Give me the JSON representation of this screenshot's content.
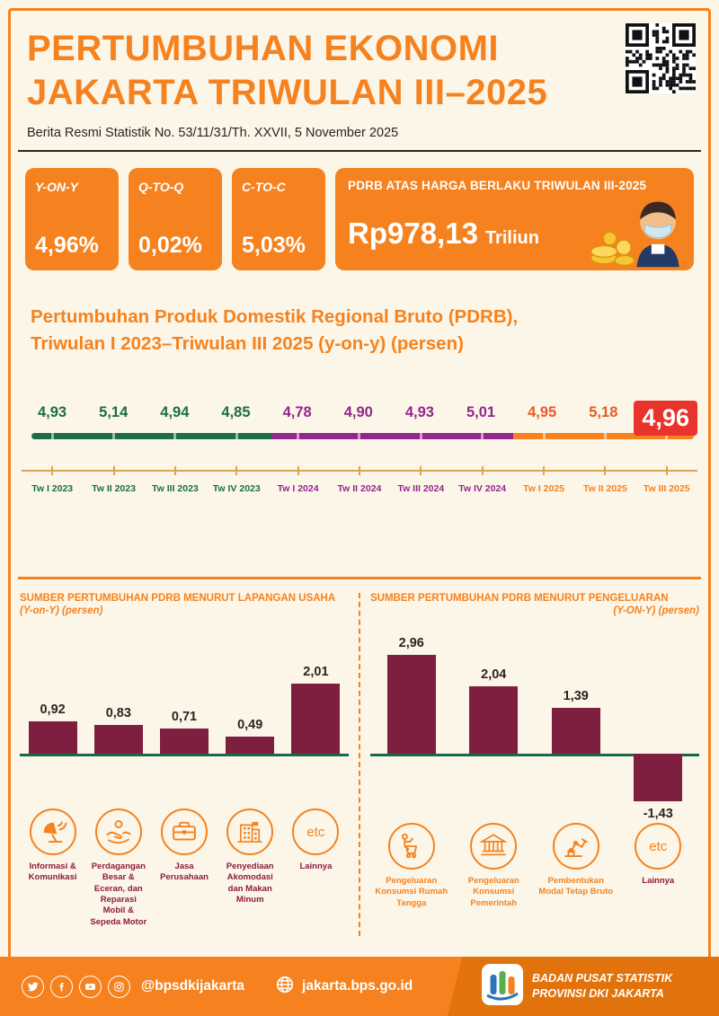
{
  "colors": {
    "orange": "#F5821F",
    "maroon": "#7E1F3F",
    "green_2023": "#1B6E45",
    "purple_2024": "#93268F",
    "red_highlight": "#E8342C",
    "background": "#FBF6E8"
  },
  "header": {
    "title1": "PERTUMBUHAN EKONOMI",
    "title2": "JAKARTA TRIWULAN III–2025",
    "subtitle": "Berita Resmi Statistik No. 53/11/31/Th. XXVII, 5 November 2025"
  },
  "stats": [
    {
      "label": "Y-ON-Y",
      "value": "4,96%"
    },
    {
      "label": "Q-TO-Q",
      "value": "0,02%"
    },
    {
      "label": "C-TO-C",
      "value": "5,03%"
    }
  ],
  "banner": {
    "title": "PDRB ATAS HARGA BERLAKU TRIWULAN III-2025",
    "value": "Rp978,13",
    "unit": "Triliun"
  },
  "growth_section": {
    "title1": "Pertumbuhan Produk Domestik Regional Bruto (PDRB),",
    "title2": "Triwulan I 2023–Triwulan III 2025 (y-on-y) (persen)"
  },
  "chart_data": [
    {
      "type": "line",
      "title": "Pertumbuhan PDRB Triwulan I 2023–Triwulan III 2025 (y-on-y) (persen)",
      "x": [
        "Tw I 2023",
        "Tw II 2023",
        "Tw III 2023",
        "Tw IV 2023",
        "Tw I 2024",
        "Tw II 2024",
        "Tw III 2024",
        "Tw IV 2024",
        "Tw I 2025",
        "Tw II 2025",
        "Tw III 2025"
      ],
      "values": [
        4.93,
        5.14,
        4.94,
        4.85,
        4.78,
        4.9,
        4.93,
        5.01,
        4.95,
        5.18,
        4.96
      ],
      "labels": [
        "4,93",
        "5,14",
        "4,94",
        "4,85",
        "4,78",
        "4,90",
        "4,93",
        "5,01",
        "4,95",
        "5,18",
        "4,96"
      ],
      "groups": [
        "2023",
        "2023",
        "2023",
        "2023",
        "2024",
        "2024",
        "2024",
        "2024",
        "2025",
        "2025",
        "2025"
      ],
      "highlight_index": 10,
      "legend_position": "none",
      "grid": false
    },
    {
      "type": "bar",
      "title": "SUMBER PERTUMBUHAN PDRB MENURUT LAPANGAN USAHA",
      "subtitle": "(Y-on-Y) (persen)",
      "categories": [
        "Informasi & Komunikasi",
        "Perdagangan Besar & Eceran, dan Reparasi Mobil & Sepeda Motor",
        "Jasa Perusahaan",
        "Penyediaan Akomodasi dan Makan Minum",
        "Lainnya"
      ],
      "values": [
        0.92,
        0.83,
        0.71,
        0.49,
        2.01
      ],
      "labels": [
        "0,92",
        "0,83",
        "0,71",
        "0,49",
        "2,01"
      ],
      "icons": [
        "satellite-icon",
        "trade-hands-icon",
        "briefcase-icon",
        "hotel-icon",
        "etc-icon"
      ],
      "ylim": [
        0,
        2.2
      ],
      "grid": false
    },
    {
      "type": "bar",
      "title": "SUMBER PERTUMBUHAN PDRB MENURUT PENGELUARAN",
      "subtitle": "(Y-ON-Y) (persen)",
      "categories": [
        "Pengeluaran Konsumsi Rumah Tangga",
        "Pengeluaran Konsumsi Pemerintah",
        "Pembentukan Modal Tetap Bruto",
        "Lainnya"
      ],
      "values": [
        2.96,
        2.04,
        1.39,
        -1.43
      ],
      "labels": [
        "2,96",
        "2,04",
        "1,39",
        "-1,43"
      ],
      "icons": [
        "household-cart-icon",
        "government-bank-icon",
        "capital-machine-icon",
        "etc-icon"
      ],
      "ylim": [
        -1.6,
        3.2
      ],
      "grid": false
    }
  ],
  "footer": {
    "handle": "@bpsdkijakarta",
    "website": "jakarta.bps.go.id",
    "org_line1": "BADAN PUSAT STATISTIK",
    "org_line2": "PROVINSI DKI JAKARTA"
  }
}
